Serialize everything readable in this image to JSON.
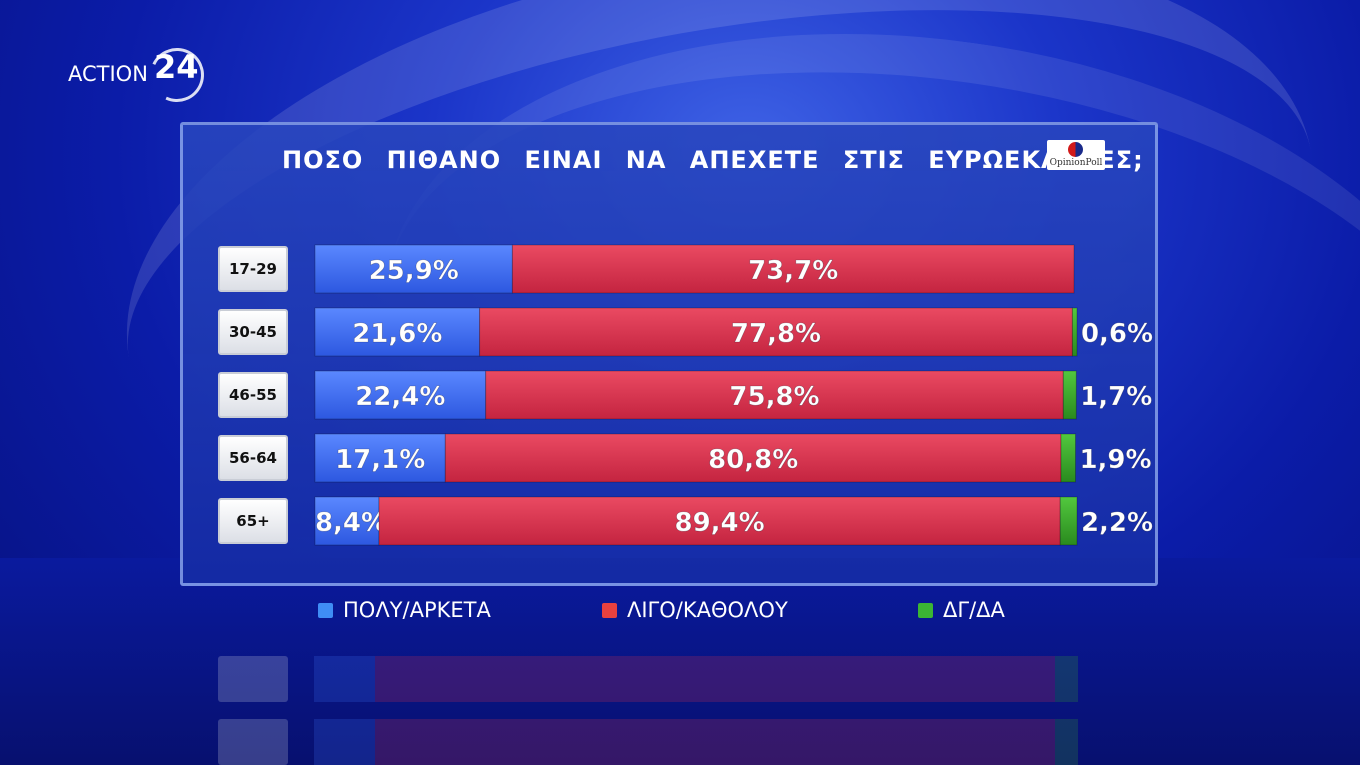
{
  "brand": {
    "channel_text": "ACTION",
    "channel_number": "24"
  },
  "title": "ΠΟΣΟ ΠΙΘΑΝΟ ΕΙΝΑΙ ΝΑ ΑΠΕΧΕΤΕ ΣΤΙΣ ΕΥΡΩΕΚΛΟΓΕΣ;",
  "pollster_logo": "OpinionPoll",
  "colors": {
    "series_1": "#3d6ff0",
    "series_2": "#d8324e",
    "series_3": "#3aaa2a"
  },
  "chart_data": {
    "type": "bar",
    "orientation": "horizontal-stacked",
    "title": "ΠΟΣΟ ΠΙΘΑΝΟ ΕΙΝΑΙ ΝΑ ΑΠΕΧΕΤΕ ΣΤΙΣ ΕΥΡΩΕΚΛΟΓΕΣ;",
    "categories": [
      "17-29",
      "30-45",
      "46-55",
      "56-64",
      "65+"
    ],
    "series": [
      {
        "name": "ΠΟΛΥ/ΑΡΚΕΤΑ",
        "values": [
          25.9,
          21.6,
          22.4,
          17.1,
          8.4
        ],
        "labels": [
          "25,9%",
          "21,6%",
          "22,4%",
          "17,1%",
          "8,4%"
        ]
      },
      {
        "name": "ΛΙΓΟ/ΚΑΘΟΛΟΥ",
        "values": [
          73.7,
          77.8,
          75.8,
          80.8,
          89.4
        ],
        "labels": [
          "73,7%",
          "77,8%",
          "75,8%",
          "80,8%",
          "89,4%"
        ]
      },
      {
        "name": "ΔΓ/ΔΑ",
        "values": [
          null,
          0.6,
          1.7,
          1.9,
          2.2
        ],
        "labels": [
          "",
          "0,6%",
          "1,7%",
          "1,9%",
          "2,2%"
        ]
      }
    ],
    "xlim": [
      0,
      100
    ],
    "legend_position": "bottom"
  }
}
